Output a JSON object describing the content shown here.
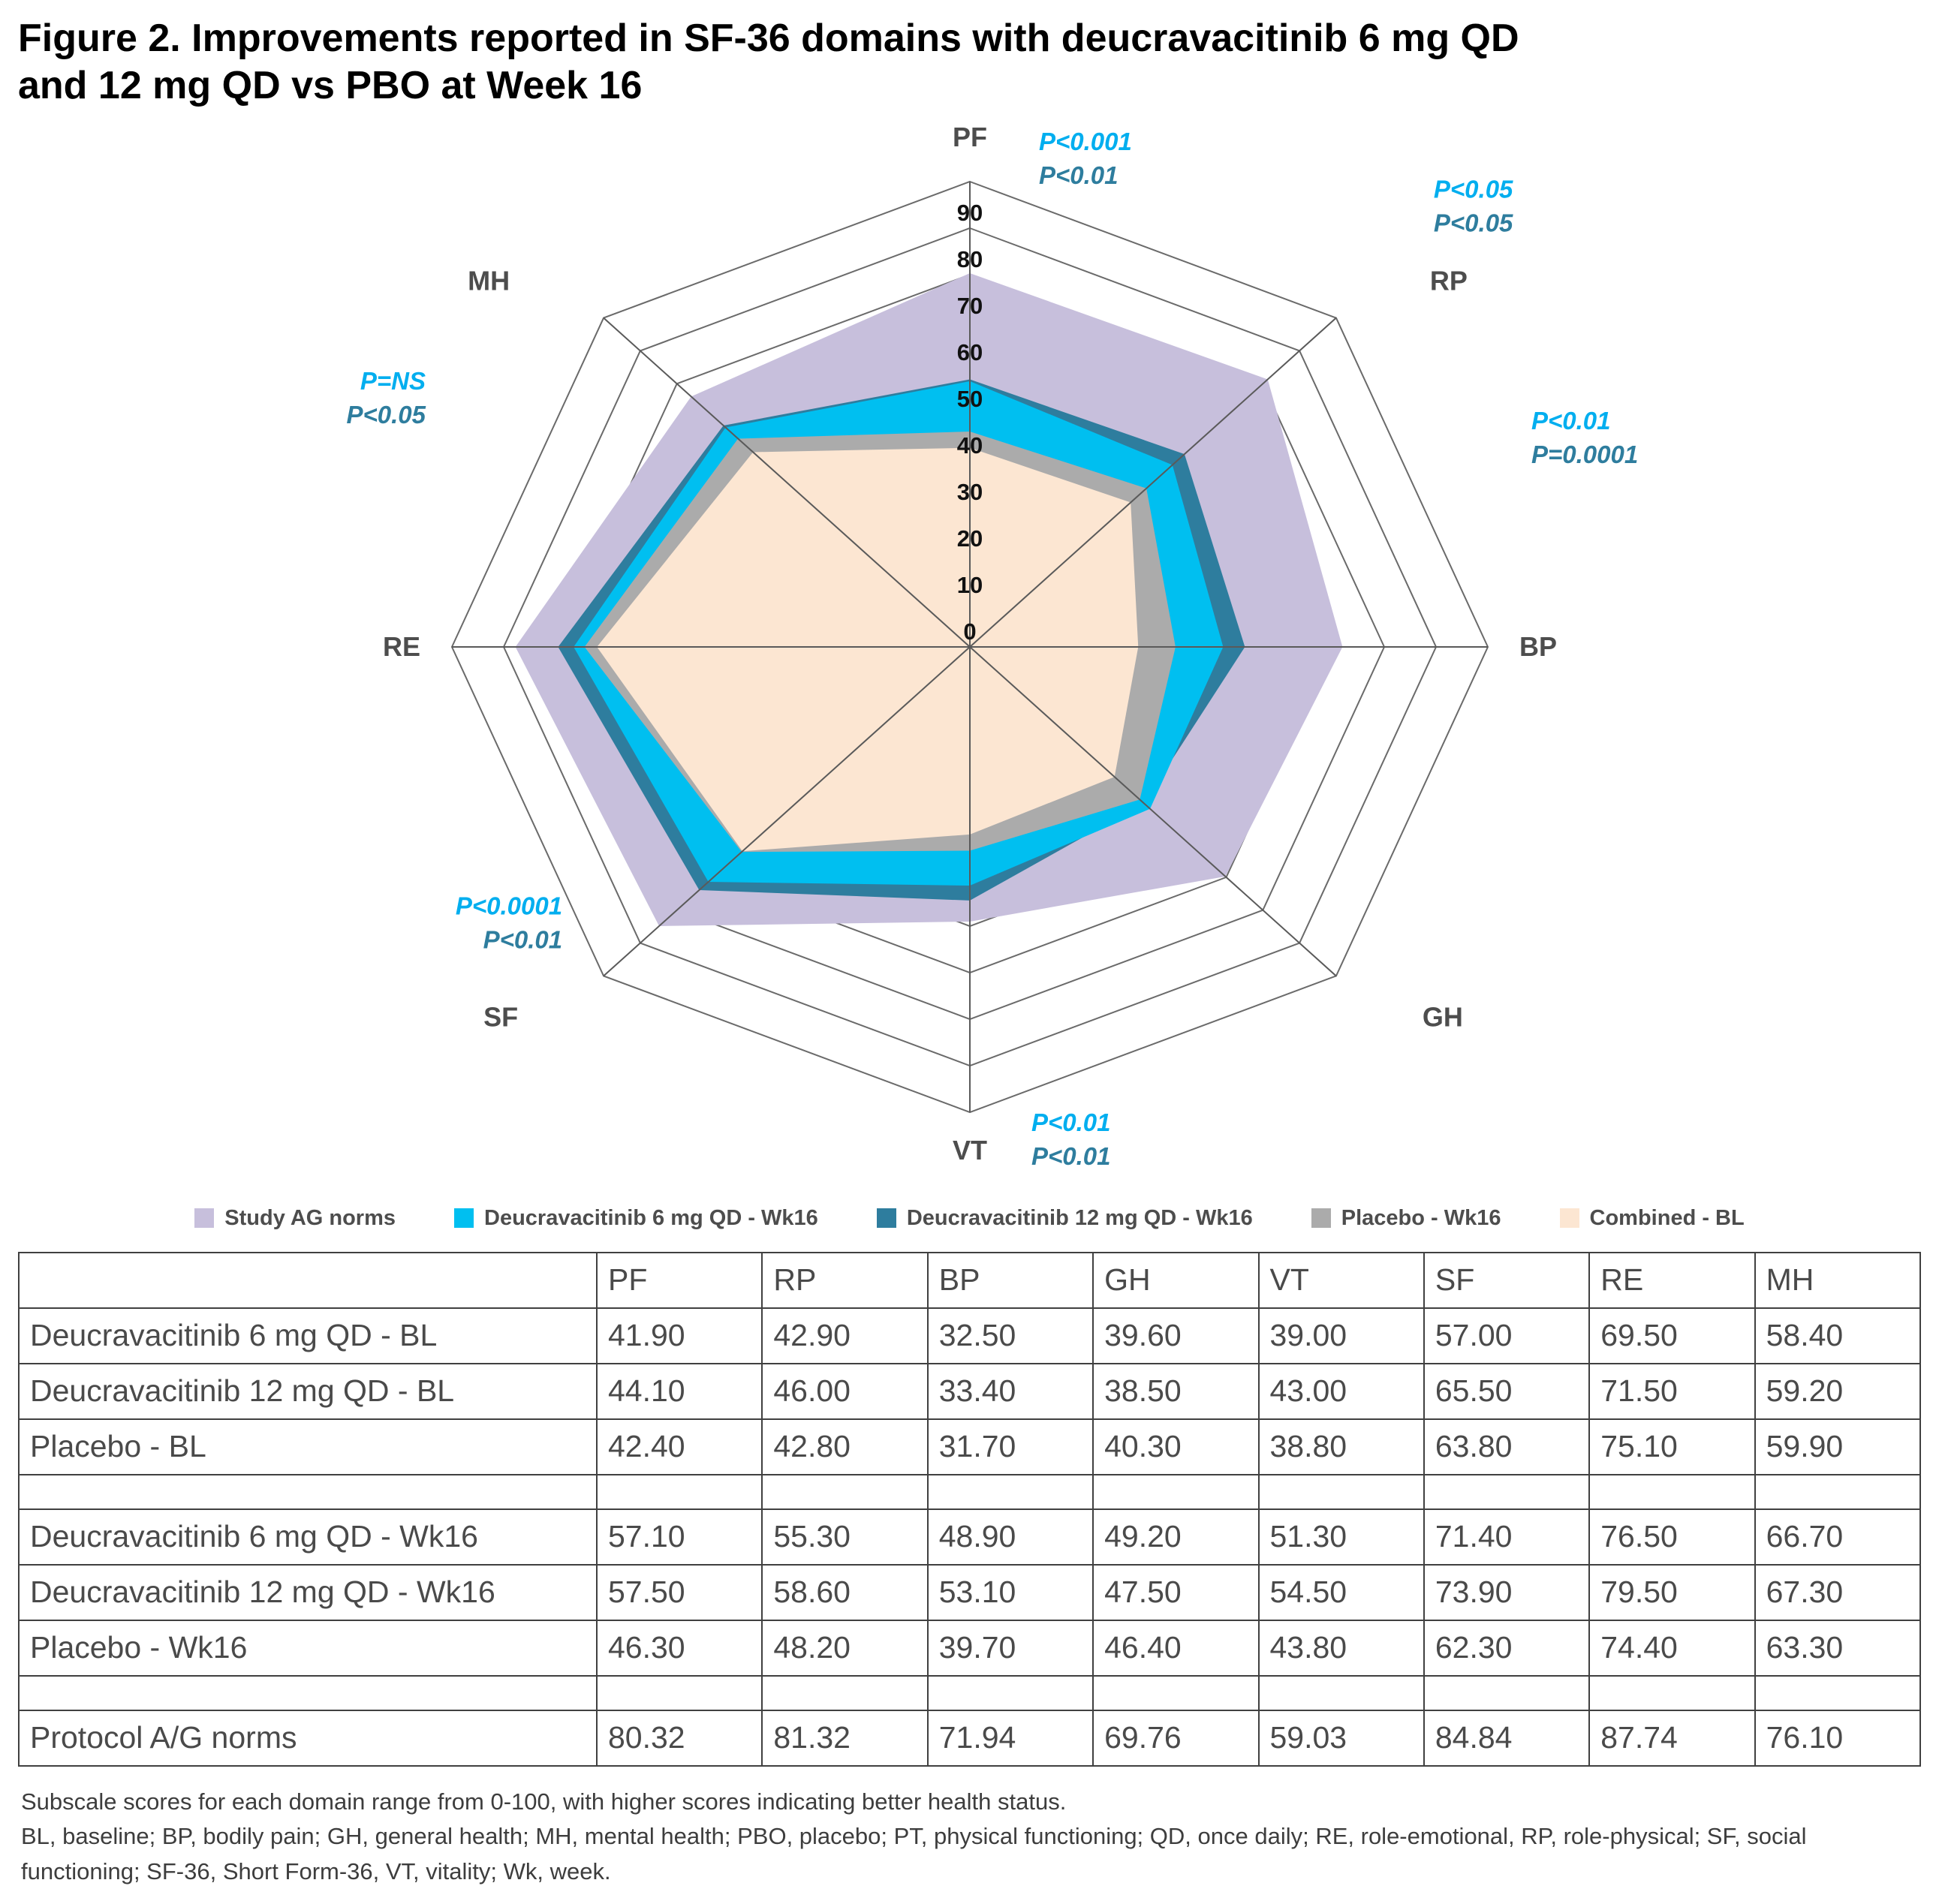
{
  "title": {
    "line1": "Figure 2. Improvements reported in SF-36 domains with deucravacitinib 6 mg QD",
    "line2": "and 12 mg QD vs PBO at Week 16"
  },
  "chart_data": {
    "type": "radar",
    "categories": [
      "PF",
      "RP",
      "BP",
      "GH",
      "VT",
      "SF",
      "RE",
      "MH"
    ],
    "axis_min": 0,
    "axis_max": 100,
    "tick_step": 10,
    "tick_labels": [
      "0",
      "10",
      "20",
      "30",
      "40",
      "50",
      "60",
      "70",
      "80",
      "90"
    ],
    "grid": true,
    "legend_position": "bottom",
    "series_draw_order_note": "drawn bottom-to-top, opaque fills",
    "series": [
      {
        "name": "Study AG norms",
        "color": "#c7bfdc",
        "values": [
          80.32,
          81.32,
          71.94,
          69.76,
          59.03,
          84.84,
          87.74,
          76.1
        ]
      },
      {
        "name": "Deucravacitinib 12 mg QD - Wk16",
        "color": "#2e7d9e",
        "values": [
          57.5,
          58.6,
          53.1,
          47.5,
          54.5,
          73.9,
          79.5,
          67.3
        ]
      },
      {
        "name": "Deucravacitinib 6 mg QD - Wk16",
        "color": "#00bff0",
        "values": [
          57.1,
          55.3,
          48.9,
          49.2,
          51.3,
          71.4,
          76.5,
          66.7
        ]
      },
      {
        "name": "Placebo - Wk16",
        "color": "#ababab",
        "values": [
          46.3,
          48.2,
          39.7,
          46.4,
          43.8,
          62.3,
          74.4,
          63.3
        ]
      },
      {
        "name": "Combined - BL",
        "color": "#fce6d2",
        "values": [
          42.8,
          43.9,
          32.5,
          39.5,
          40.3,
          62.1,
          72.0,
          59.2
        ]
      }
    ],
    "p_annotations": [
      {
        "axis": "PF",
        "line1": "P<0.001",
        "line2": "P<0.01"
      },
      {
        "axis": "RP",
        "line1": "P<0.05",
        "line2": "P<0.05"
      },
      {
        "axis": "BP",
        "line1": "P<0.01",
        "line2": "P=0.0001"
      },
      {
        "axis": "VT",
        "line1": "P<0.01",
        "line2": "P<0.01"
      },
      {
        "axis": "SF",
        "line1": "P<0.0001",
        "line2": "P<0.01"
      },
      {
        "axis": "RE",
        "line1": "P=NS",
        "line2": "P<0.05"
      }
    ],
    "annotation_colors": {
      "line1": "#00aeef",
      "line2": "#2e7d9e"
    }
  },
  "legend": {
    "items": [
      {
        "label": "Study AG norms",
        "color": "#c7bfdc"
      },
      {
        "label": "Deucravacitinib 6 mg QD - Wk16",
        "color": "#00bff0"
      },
      {
        "label": "Deucravacitinib 12 mg QD - Wk16",
        "color": "#2e7d9e"
      },
      {
        "label": "Placebo - Wk16",
        "color": "#ababab"
      },
      {
        "label": "Combined - BL",
        "color": "#fce6d2"
      }
    ]
  },
  "table": {
    "header": [
      "",
      "PF",
      "RP",
      "BP",
      "GH",
      "VT",
      "SF",
      "RE",
      "MH"
    ],
    "rows": [
      {
        "label": "Deucravacitinib 6 mg QD - BL",
        "spacer": false,
        "values": [
          "41.90",
          "42.90",
          "32.50",
          "39.60",
          "39.00",
          "57.00",
          "69.50",
          "58.40"
        ]
      },
      {
        "label": "Deucravacitinib 12 mg QD - BL",
        "spacer": false,
        "values": [
          "44.10",
          "46.00",
          "33.40",
          "38.50",
          "43.00",
          "65.50",
          "71.50",
          "59.20"
        ]
      },
      {
        "label": "Placebo - BL",
        "spacer": false,
        "values": [
          "42.40",
          "42.80",
          "31.70",
          "40.30",
          "38.80",
          "63.80",
          "75.10",
          "59.90"
        ]
      },
      {
        "label": "",
        "spacer": true,
        "values": [
          "",
          "",
          "",
          "",
          "",
          "",
          "",
          ""
        ]
      },
      {
        "label": "Deucravacitinib 6 mg QD - Wk16",
        "spacer": false,
        "values": [
          "57.10",
          "55.30",
          "48.90",
          "49.20",
          "51.30",
          "71.40",
          "76.50",
          "66.70"
        ]
      },
      {
        "label": "Deucravacitinib 12 mg QD - Wk16",
        "spacer": false,
        "values": [
          "57.50",
          "58.60",
          "53.10",
          "47.50",
          "54.50",
          "73.90",
          "79.50",
          "67.30"
        ]
      },
      {
        "label": "Placebo - Wk16",
        "spacer": false,
        "values": [
          "46.30",
          "48.20",
          "39.70",
          "46.40",
          "43.80",
          "62.30",
          "74.40",
          "63.30"
        ]
      },
      {
        "label": "",
        "spacer": true,
        "values": [
          "",
          "",
          "",
          "",
          "",
          "",
          "",
          ""
        ]
      },
      {
        "label": "Protocol A/G norms",
        "spacer": false,
        "values": [
          "80.32",
          "81.32",
          "71.94",
          "69.76",
          "59.03",
          "84.84",
          "87.74",
          "76.10"
        ]
      }
    ]
  },
  "footnotes": [
    "Subscale scores for each domain range from 0-100, with higher scores indicating better health status.",
    "BL, baseline; BP, bodily pain; GH, general health; MH, mental health; PBO, placebo; PT, physical functioning; QD, once daily; RE, role-emotional, RP, role-physical; SF, social functioning; SF-36, Short Form-36, VT, vitality; Wk, week."
  ]
}
